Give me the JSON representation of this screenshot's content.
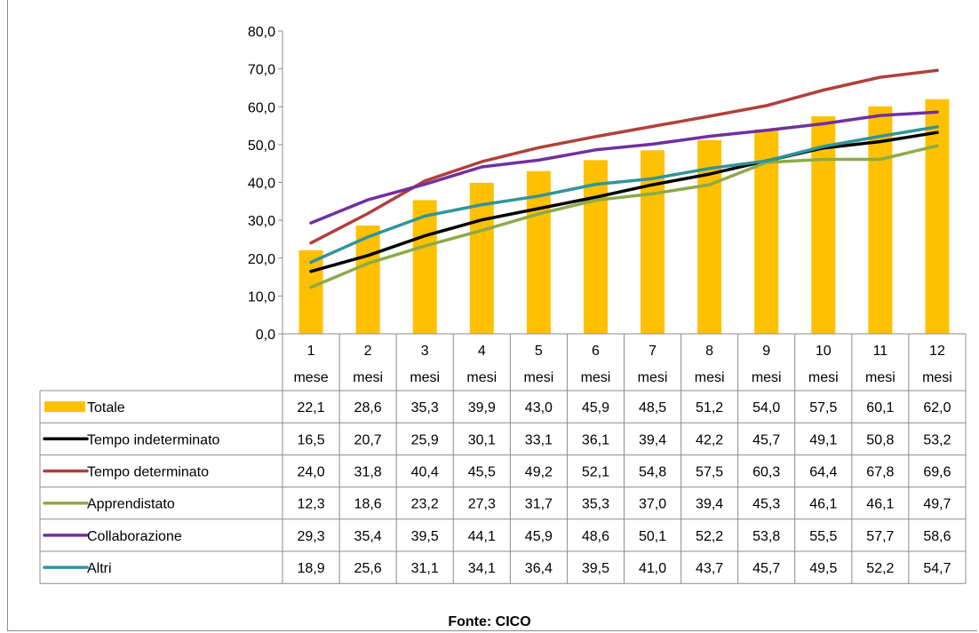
{
  "chart_data": {
    "type": "bar+line",
    "categories": [
      [
        "1",
        "mese"
      ],
      [
        "2",
        "mesi"
      ],
      [
        "3",
        "mesi"
      ],
      [
        "4",
        "mesi"
      ],
      [
        "5",
        "mesi"
      ],
      [
        "6",
        "mesi"
      ],
      [
        "7",
        "mesi"
      ],
      [
        "8",
        "mesi"
      ],
      [
        "9",
        "mesi"
      ],
      [
        "10",
        "mesi"
      ],
      [
        "11",
        "mesi"
      ],
      [
        "12",
        "mesi"
      ]
    ],
    "ylim": [
      0,
      80
    ],
    "yticks": [
      "0,0",
      "10,0",
      "20,0",
      "30,0",
      "40,0",
      "50,0",
      "60,0",
      "70,0",
      "80,0"
    ],
    "grid": false,
    "legend": "data-table-below",
    "series": [
      {
        "name": "Totale",
        "type": "bar",
        "color": "#FFC000",
        "values": [
          22.1,
          28.6,
          35.3,
          39.9,
          43.0,
          45.9,
          48.5,
          51.2,
          54.0,
          57.5,
          60.1,
          62.0
        ],
        "labels": [
          "22,1",
          "28,6",
          "35,3",
          "39,9",
          "43,0",
          "45,9",
          "48,5",
          "51,2",
          "54,0",
          "57,5",
          "60,1",
          "62,0"
        ]
      },
      {
        "name": "Tempo indeterminato",
        "type": "line",
        "color": "#000000",
        "values": [
          16.5,
          20.7,
          25.9,
          30.1,
          33.1,
          36.1,
          39.4,
          42.2,
          45.7,
          49.1,
          50.8,
          53.2
        ],
        "labels": [
          "16,5",
          "20,7",
          "25,9",
          "30,1",
          "33,1",
          "36,1",
          "39,4",
          "42,2",
          "45,7",
          "49,1",
          "50,8",
          "53,2"
        ]
      },
      {
        "name": "Tempo determinato",
        "type": "line",
        "color": "#B0403A",
        "values": [
          24.0,
          31.8,
          40.4,
          45.5,
          49.2,
          52.1,
          54.8,
          57.5,
          60.3,
          64.4,
          67.8,
          69.6
        ],
        "labels": [
          "24,0",
          "31,8",
          "40,4",
          "45,5",
          "49,2",
          "52,1",
          "54,8",
          "57,5",
          "60,3",
          "64,4",
          "67,8",
          "69,6"
        ]
      },
      {
        "name": "Apprendistato",
        "type": "line",
        "color": "#8CAA4A",
        "values": [
          12.3,
          18.6,
          23.2,
          27.3,
          31.7,
          35.3,
          37.0,
          39.4,
          45.3,
          46.1,
          46.1,
          49.7
        ],
        "labels": [
          "12,3",
          "18,6",
          "23,2",
          "27,3",
          "31,7",
          "35,3",
          "37,0",
          "39,4",
          "45,3",
          "46,1",
          "46,1",
          "49,7"
        ]
      },
      {
        "name": "Collaborazione",
        "type": "line",
        "color": "#7030A0",
        "values": [
          29.3,
          35.4,
          39.5,
          44.1,
          45.9,
          48.6,
          50.1,
          52.2,
          53.8,
          55.5,
          57.7,
          58.6
        ],
        "labels": [
          "29,3",
          "35,4",
          "39,5",
          "44,1",
          "45,9",
          "48,6",
          "50,1",
          "52,2",
          "53,8",
          "55,5",
          "57,7",
          "58,6"
        ]
      },
      {
        "name": "Altri",
        "type": "line",
        "color": "#31949C",
        "values": [
          18.9,
          25.6,
          31.1,
          34.1,
          36.4,
          39.5,
          41.0,
          43.7,
          45.7,
          49.5,
          52.2,
          54.7
        ],
        "labels": [
          "18,9",
          "25,6",
          "31,1",
          "34,1",
          "36,4",
          "39,5",
          "41,0",
          "43,7",
          "45,7",
          "49,5",
          "52,2",
          "54,7"
        ]
      }
    ],
    "source_note": "Fonte: CICO"
  }
}
